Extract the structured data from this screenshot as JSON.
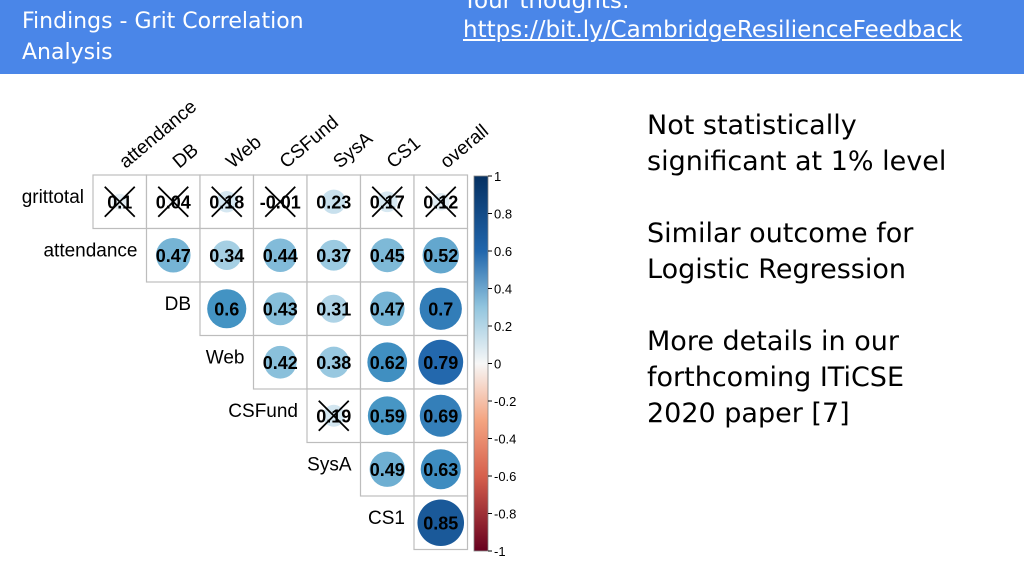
{
  "header": {
    "title": "Findings - Grit Correlation Analysis",
    "thoughts_label": "Your thoughts:",
    "feedback_link": "https://bit.ly/CambridgeResilienceFeedback",
    "bg_color": "#4a86e8"
  },
  "notes": [
    "Not statistically significant at 1% level",
    "Similar outcome for Logistic Regression",
    "More details in our forthcoming ITiCSE 2020 paper [7]"
  ],
  "chart_data": {
    "type": "heatmap",
    "title": "",
    "columns": [
      "attendance",
      "DB",
      "Web",
      "CSFund",
      "SysA",
      "CS1",
      "overall"
    ],
    "rows": [
      "grittotal",
      "attendance",
      "DB",
      "Web",
      "CSFund",
      "SysA",
      "CS1"
    ],
    "cells": [
      {
        "row": "grittotal",
        "col": "attendance",
        "label": "0.1",
        "value": 0.1,
        "crossed": true
      },
      {
        "row": "grittotal",
        "col": "DB",
        "label": "0.04",
        "value": 0.04,
        "crossed": true
      },
      {
        "row": "grittotal",
        "col": "Web",
        "label": "0.18",
        "value": 0.18,
        "crossed": true
      },
      {
        "row": "grittotal",
        "col": "CSFund",
        "label": "-0.01",
        "value": -0.01,
        "crossed": true
      },
      {
        "row": "grittotal",
        "col": "SysA",
        "label": "0.23",
        "value": 0.23,
        "crossed": false
      },
      {
        "row": "grittotal",
        "col": "CS1",
        "label": "0.17",
        "value": 0.17,
        "crossed": true
      },
      {
        "row": "grittotal",
        "col": "overall",
        "label": "0.12",
        "value": 0.12,
        "crossed": true
      },
      {
        "row": "attendance",
        "col": "DB",
        "label": "0.47",
        "value": 0.47,
        "crossed": false
      },
      {
        "row": "attendance",
        "col": "Web",
        "label": "0.34",
        "value": 0.34,
        "crossed": false
      },
      {
        "row": "attendance",
        "col": "CSFund",
        "label": "0.44",
        "value": 0.44,
        "crossed": false
      },
      {
        "row": "attendance",
        "col": "SysA",
        "label": "0.37",
        "value": 0.37,
        "crossed": false
      },
      {
        "row": "attendance",
        "col": "CS1",
        "label": "0.45",
        "value": 0.45,
        "crossed": false
      },
      {
        "row": "attendance",
        "col": "overall",
        "label": "0.52",
        "value": 0.52,
        "crossed": false
      },
      {
        "row": "DB",
        "col": "Web",
        "label": "0.6",
        "value": 0.6,
        "crossed": false
      },
      {
        "row": "DB",
        "col": "CSFund",
        "label": "0.43",
        "value": 0.43,
        "crossed": false
      },
      {
        "row": "DB",
        "col": "SysA",
        "label": "0.31",
        "value": 0.31,
        "crossed": false
      },
      {
        "row": "DB",
        "col": "CS1",
        "label": "0.47",
        "value": 0.47,
        "crossed": false
      },
      {
        "row": "DB",
        "col": "overall",
        "label": "0.7",
        "value": 0.7,
        "crossed": false
      },
      {
        "row": "Web",
        "col": "CSFund",
        "label": "0.42",
        "value": 0.42,
        "crossed": false
      },
      {
        "row": "Web",
        "col": "SysA",
        "label": "0.38",
        "value": 0.38,
        "crossed": false
      },
      {
        "row": "Web",
        "col": "CS1",
        "label": "0.62",
        "value": 0.62,
        "crossed": false
      },
      {
        "row": "Web",
        "col": "overall",
        "label": "0.79",
        "value": 0.79,
        "crossed": false
      },
      {
        "row": "CSFund",
        "col": "SysA",
        "label": "0.19",
        "value": 0.19,
        "crossed": true
      },
      {
        "row": "CSFund",
        "col": "CS1",
        "label": "0.59",
        "value": 0.59,
        "crossed": false
      },
      {
        "row": "CSFund",
        "col": "overall",
        "label": "0.69",
        "value": 0.69,
        "crossed": false
      },
      {
        "row": "SysA",
        "col": "CS1",
        "label": "0.49",
        "value": 0.49,
        "crossed": false
      },
      {
        "row": "SysA",
        "col": "overall",
        "label": "0.63",
        "value": 0.63,
        "crossed": false
      },
      {
        "row": "CS1",
        "col": "overall",
        "label": "0.85",
        "value": 0.85,
        "crossed": false
      }
    ],
    "colorbar": {
      "ticks": [
        "1",
        "0.8",
        "0.6",
        "0.4",
        "0.2",
        "0",
        "-0.2",
        "-0.4",
        "-0.6",
        "-0.8",
        "-1"
      ],
      "range": [
        -1,
        1
      ],
      "colors": {
        "negative": "#67001f",
        "neutral": "#f7f7f7",
        "positive": "#053061"
      }
    }
  }
}
